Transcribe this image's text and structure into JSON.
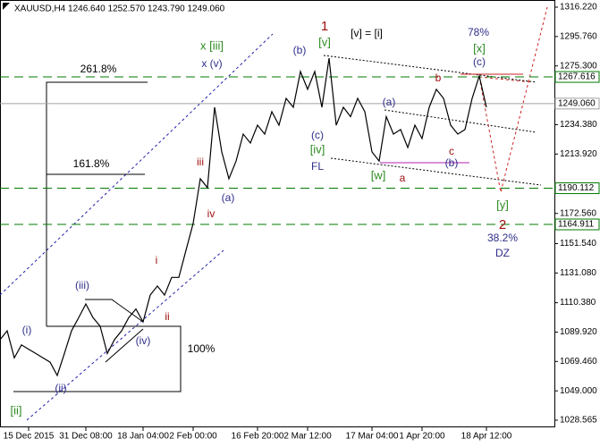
{
  "chart_data": {
    "type": "line",
    "title": "XAUUSD,H4  1246.640 1252.570 1243.790 1249.060",
    "color": "#000000",
    "values": [
      1084.6,
      1090.8,
      1072,
      1081,
      1078,
      1075,
      1072,
      1069,
      1059.7,
      1075,
      1090.8,
      1100,
      1109.5,
      1100,
      1094,
      1075,
      1084.6,
      1090.8,
      1100,
      1106,
      1097,
      1115.7,
      1122,
      1115.7,
      1128,
      1128,
      1146.9,
      1165.6,
      1196.7,
      1190.5,
      1246.5,
      1215.4,
      1196.7,
      1209,
      1227.8,
      1221.6,
      1234,
      1227.8,
      1243.4,
      1234,
      1252.7,
      1246.5,
      1271.4,
      1259,
      1271.4,
      1246.5,
      1280.7,
      1234,
      1246.5,
      1240,
      1252.7,
      1243.4,
      1215.4,
      1209,
      1240,
      1227.8,
      1231,
      1218.5,
      1234,
      1224.7,
      1246.5,
      1259,
      1252.7,
      1234,
      1227.8,
      1231,
      1252.7,
      1268.3,
      1246.5
    ],
    "categories": [
      null,
      null,
      null,
      null,
      "15 Dec 2015",
      null,
      null,
      null,
      null,
      null,
      null,
      null,
      "31 Dec 08:00",
      null,
      null,
      null,
      null,
      null,
      null,
      null,
      "18 Jan 04:00",
      null,
      null,
      null,
      null,
      null,
      null,
      "2 Feb 00:00",
      null,
      null,
      null,
      null,
      null,
      null,
      null,
      null,
      "16 Feb 20:00",
      null,
      null,
      null,
      null,
      null,
      null,
      "2 Mar 12:00",
      null,
      null,
      null,
      null,
      null,
      null,
      null,
      null,
      "17 Mar 04:00",
      null,
      null,
      null,
      null,
      null,
      null,
      "1 Apr 20:00",
      null,
      null,
      null,
      null,
      null,
      null,
      null,
      null,
      "18 Apr 12:00"
    ],
    "ylim": [
      1028.565,
      1316.22
    ],
    "yticks": [
      {
        "value": 1316.22,
        "label": "1316.220"
      },
      {
        "value": 1295.76,
        "label": "1295.760"
      },
      {
        "value": 1275.3,
        "label": "1275.300"
      },
      {
        "value": 1234.38,
        "label": "1234.380"
      },
      {
        "value": 1213.92,
        "label": "1213.920"
      },
      {
        "value": 1172.56,
        "label": "1172.560"
      },
      {
        "value": 1151.54,
        "label": "1151.540"
      },
      {
        "value": 1131.08,
        "label": "1131.080"
      },
      {
        "value": 1110.38,
        "label": "1110.380"
      },
      {
        "value": 1089.92,
        "label": "1089.920"
      },
      {
        "value": 1069.46,
        "label": "1069.460"
      },
      {
        "value": 1049,
        "label": "1049.000"
      },
      {
        "value": 1028.565,
        "label": "1028.565"
      }
    ],
    "price_levels": [
      {
        "value": 1267.616,
        "label": "1267.616",
        "color": "#007a00"
      },
      {
        "value": 1249.06,
        "label": "1249.060",
        "color": "#a0a0a0"
      },
      {
        "value": 1190.112,
        "label": "1190.112",
        "color": "#007a00"
      },
      {
        "value": 1164.911,
        "label": "1164.911",
        "color": "#007a00"
      }
    ],
    "annotations": [
      {
        "text": "[ii]",
        "color": "#2e8b22"
      },
      {
        "text": "(i)",
        "color": "#2e2e8a"
      },
      {
        "text": "(ii)",
        "color": "#2e2e8a"
      },
      {
        "text": "(iii)",
        "color": "#2e2e8a"
      },
      {
        "text": "(iv)",
        "color": "#2e2e8a"
      },
      {
        "text": "i",
        "color": "#a01010"
      },
      {
        "text": "ii",
        "color": "#a01010"
      },
      {
        "text": "iii",
        "color": "#a01010"
      },
      {
        "text": "iv",
        "color": "#a01010"
      },
      {
        "text": "(a)",
        "color": "#2e2e8a"
      },
      {
        "text": "x [iii]",
        "color": "#2e8b22"
      },
      {
        "text": "x (v)",
        "color": "#2e2e8a"
      },
      {
        "text": "(b)",
        "color": "#2e2e8a"
      },
      {
        "text": "1",
        "color": "#a01010"
      },
      {
        "text": "[v]",
        "color": "#2e8b22"
      },
      {
        "text": "[v] = [i]",
        "color": "#000000"
      },
      {
        "text": "[iv]",
        "color": "#2e8b22"
      },
      {
        "text": "(c)",
        "color": "#2e2e8a"
      },
      {
        "text": "FL",
        "color": "#2e2e8a"
      },
      {
        "text": "[w]",
        "color": "#2e8b22"
      },
      {
        "text": "a",
        "color": "#a01010"
      },
      {
        "text": "(a)",
        "color": "#2e2e8a"
      },
      {
        "text": "b",
        "color": "#a01010"
      },
      {
        "text": "c",
        "color": "#a01010"
      },
      {
        "text": "(b)",
        "color": "#2e2e8a"
      },
      {
        "text": "78%",
        "color": "#2e2e8a"
      },
      {
        "text": "[x]",
        "color": "#2e8b22"
      },
      {
        "text": "(c)",
        "color": "#2e2e8a"
      },
      {
        "text": "[y]",
        "color": "#2e8b22"
      },
      {
        "text": "2",
        "color": "#a01010"
      },
      {
        "text": "38.2%",
        "color": "#2e2e8a"
      },
      {
        "text": "DZ",
        "color": "#2e2e8a"
      },
      {
        "text": "261.8%",
        "color": "#000000"
      },
      {
        "text": "161.8%",
        "color": "#000000"
      },
      {
        "text": "100%",
        "color": "#000000"
      }
    ]
  }
}
